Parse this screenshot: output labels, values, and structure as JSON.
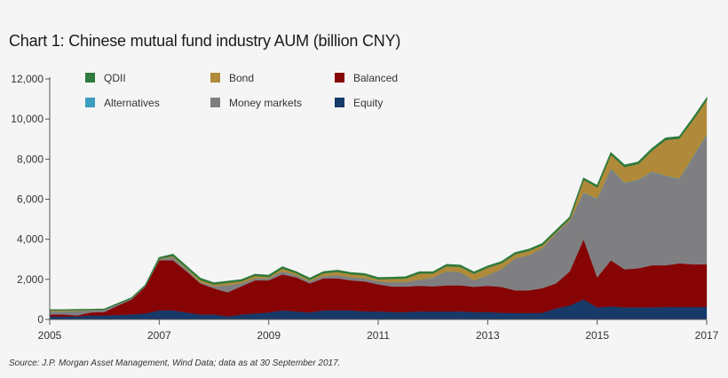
{
  "chart_data": {
    "type": "area",
    "stacked": true,
    "title": "Chart 1: Chinese mutual fund industry AUM (billion CNY)",
    "xlabel": "",
    "ylabel": "",
    "xlim": [
      2005,
      2017
    ],
    "ylim": [
      0,
      12000
    ],
    "x_ticks": [
      2005,
      2007,
      2009,
      2011,
      2013,
      2015,
      2017
    ],
    "x_tick_labels": [
      "2005",
      "2007",
      "2009",
      "2011",
      "2013",
      "2015",
      "2017"
    ],
    "y_ticks": [
      0,
      2000,
      4000,
      6000,
      8000,
      10000,
      12000
    ],
    "y_tick_labels": [
      "0",
      "2,000",
      "4,000",
      "6,000",
      "8,000",
      "10,000",
      "12,000"
    ],
    "grid": false,
    "legend_placement": "top",
    "x": [
      2005,
      2005.25,
      2005.5,
      2005.75,
      2006,
      2006.25,
      2006.5,
      2006.75,
      2007,
      2007.25,
      2007.5,
      2007.75,
      2008,
      2008.25,
      2008.5,
      2008.75,
      2009,
      2009.25,
      2009.5,
      2009.75,
      2010,
      2010.25,
      2010.5,
      2010.75,
      2011,
      2011.25,
      2011.5,
      2011.75,
      2012,
      2012.25,
      2012.5,
      2012.75,
      2013,
      2013.25,
      2013.5,
      2013.75,
      2014,
      2014.25,
      2014.5,
      2014.75,
      2015,
      2015.25,
      2015.5,
      2015.75,
      2016,
      2016.25,
      2016.5,
      2016.75,
      2017
    ],
    "series": [
      {
        "name": "Equity",
        "color": "#173a69",
        "values": [
          150,
          150,
          150,
          200,
          200,
          220,
          250,
          300,
          450,
          450,
          350,
          250,
          250,
          150,
          250,
          300,
          350,
          450,
          400,
          350,
          450,
          450,
          450,
          400,
          400,
          370,
          370,
          400,
          400,
          400,
          400,
          370,
          370,
          330,
          320,
          320,
          330,
          550,
          700,
          1000,
          600,
          650,
          600,
          600,
          600,
          620,
          620,
          620,
          620
        ]
      },
      {
        "name": "Balanced",
        "color": "#860404",
        "values": [
          100,
          100,
          50,
          150,
          170,
          480,
          750,
          1350,
          2500,
          2500,
          2050,
          1550,
          1300,
          1200,
          1400,
          1650,
          1600,
          1800,
          1700,
          1450,
          1600,
          1600,
          1500,
          1500,
          1350,
          1270,
          1270,
          1280,
          1250,
          1300,
          1300,
          1260,
          1310,
          1290,
          1130,
          1130,
          1230,
          1250,
          1700,
          3000,
          1500,
          2300,
          1900,
          1950,
          2100,
          2080,
          2180,
          2130,
          2130
        ]
      },
      {
        "name": "Money markets",
        "color": "#7f7f82",
        "values": [
          150,
          150,
          220,
          100,
          110,
          80,
          50,
          50,
          50,
          150,
          100,
          50,
          100,
          350,
          150,
          100,
          100,
          150,
          100,
          100,
          100,
          150,
          150,
          150,
          150,
          220,
          230,
          300,
          430,
          700,
          650,
          320,
          520,
          880,
          1600,
          1750,
          1990,
          2500,
          2500,
          2300,
          3900,
          4550,
          4300,
          4400,
          4650,
          4450,
          4200,
          5350,
          6450
        ]
      },
      {
        "name": "Alternatives",
        "color": "#3c9dbf",
        "values": [
          0,
          0,
          0,
          0,
          0,
          0,
          0,
          0,
          0,
          0,
          0,
          0,
          0,
          0,
          0,
          0,
          0,
          0,
          0,
          0,
          0,
          0,
          0,
          0,
          0,
          0,
          0,
          0,
          0,
          0,
          0,
          0,
          0,
          0,
          0,
          0,
          10,
          10,
          15,
          20,
          20,
          20,
          20,
          20,
          20,
          20,
          20,
          20,
          20
        ]
      },
      {
        "name": "Bond",
        "color": "#b08a3a",
        "values": [
          70,
          70,
          60,
          40,
          30,
          10,
          20,
          10,
          50,
          80,
          90,
          140,
          110,
          140,
          120,
          140,
          90,
          160,
          120,
          90,
          170,
          190,
          170,
          170,
          120,
          180,
          190,
          330,
          230,
          280,
          290,
          350,
          400,
          320,
          220,
          240,
          160,
          80,
          125,
          670,
          580,
          720,
          800,
          800,
          1070,
          1800,
          2020,
          1850,
          1740
        ]
      },
      {
        "name": "QDII",
        "color": "#2f7a3c",
        "values": [
          10,
          10,
          10,
          10,
          10,
          10,
          10,
          10,
          30,
          70,
          60,
          60,
          60,
          60,
          60,
          60,
          60,
          60,
          60,
          60,
          60,
          60,
          60,
          60,
          60,
          60,
          60,
          60,
          60,
          60,
          60,
          60,
          60,
          60,
          60,
          60,
          60,
          60,
          60,
          60,
          80,
          80,
          80,
          80,
          80,
          80,
          80,
          80,
          80
        ]
      }
    ],
    "legend": [
      {
        "label": "QDII",
        "color": "#2f7a3c"
      },
      {
        "label": "Bond",
        "color": "#b08a3a"
      },
      {
        "label": "Balanced",
        "color": "#860404"
      },
      {
        "label": "Alternatives",
        "color": "#3c9dbf"
      },
      {
        "label": "Money markets",
        "color": "#7f7f82"
      },
      {
        "label": "Equity",
        "color": "#173a69"
      }
    ],
    "source": "Source: J.P. Morgan Asset Management, Wind Data; data as at 30 September 2017."
  }
}
